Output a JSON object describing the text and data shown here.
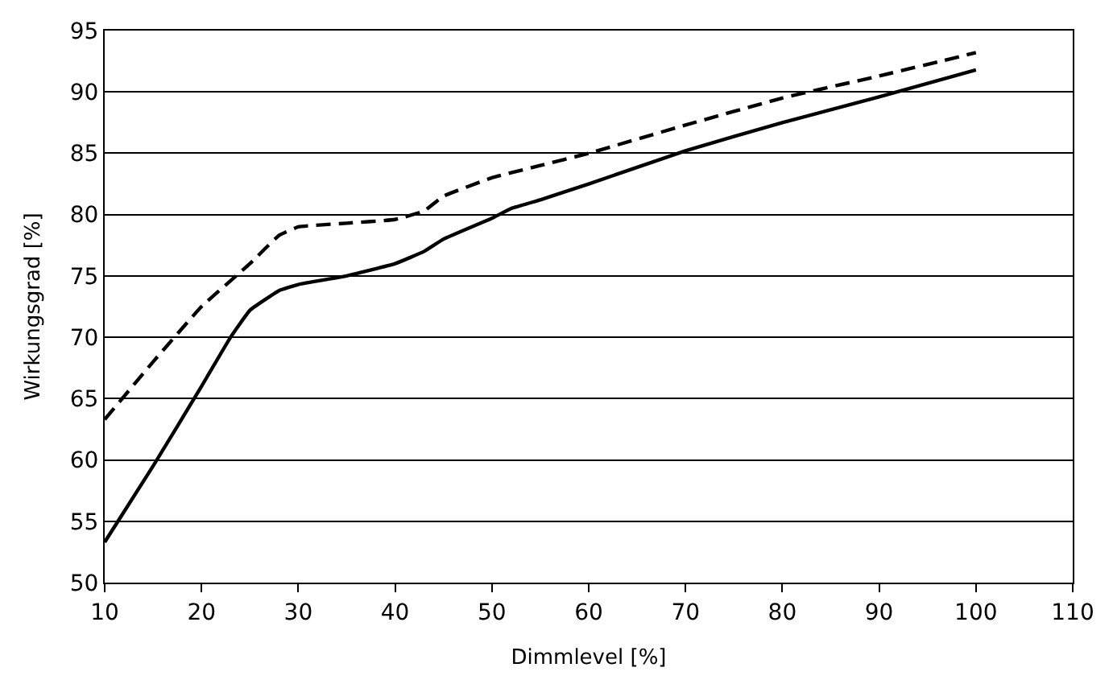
{
  "chart_data": {
    "type": "line",
    "xlabel": "Dimmlevel [%]",
    "ylabel": "Wirkungsgrad [%]",
    "xlim": [
      10,
      110
    ],
    "xticks": [
      10,
      20,
      30,
      40,
      50,
      60,
      70,
      80,
      90,
      100,
      110
    ],
    "ylim": [
      50,
      95
    ],
    "yticks": [
      50,
      55,
      60,
      65,
      70,
      75,
      80,
      85,
      90,
      95
    ],
    "grid": "y",
    "marker": "none",
    "series": [
      {
        "color": "#000000",
        "line_style": "solid",
        "x": [
          10,
          15,
          20,
          23,
          25,
          28,
          30,
          35,
          40,
          43,
          45,
          50,
          52,
          55,
          60,
          70,
          80,
          90,
          100
        ],
        "values": [
          53.3,
          59.5,
          66,
          70,
          72.2,
          73.8,
          74.3,
          75,
          76,
          77,
          78,
          79.7,
          80.5,
          81.2,
          82.5,
          85.2,
          87.5,
          89.6,
          91.8
        ]
      },
      {
        "color": "#000000",
        "line_style": "dashed",
        "x": [
          10,
          15,
          20,
          25,
          28,
          30,
          35,
          40,
          43,
          45,
          50,
          55,
          60,
          70,
          80,
          90,
          100
        ],
        "values": [
          63.3,
          68,
          72.5,
          76,
          78.3,
          79,
          79.3,
          79.6,
          80.3,
          81.5,
          83,
          84,
          85,
          87.3,
          89.5,
          91.3,
          93.2
        ]
      }
    ]
  }
}
